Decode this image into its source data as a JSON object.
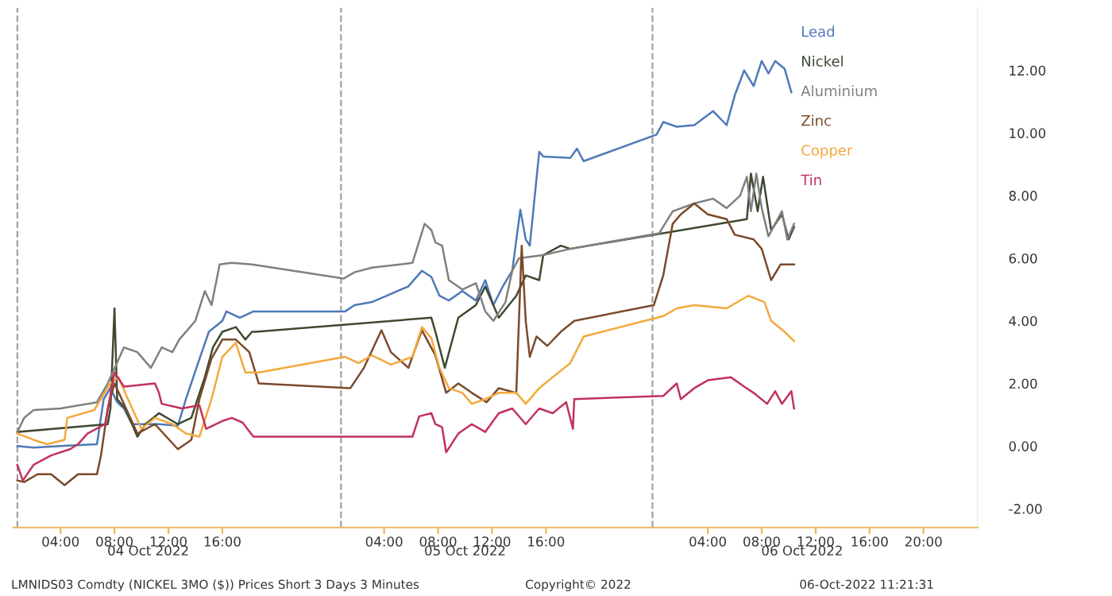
{
  "chart_data": {
    "type": "line",
    "x2ticks": [
      {
        "value": "2022-10-04T10:30",
        "label": "04 Oct 2022"
      },
      {
        "value": "2022-10-05T10:00",
        "label": "05 Oct 2022"
      },
      {
        "value": "2022-10-06T11:00",
        "label": "06 Oct 2022"
      }
    ],
    "xlim": [
      "2022-10-04T00:30",
      "2022-10-07T00:00"
    ],
    "x2lim": [
      "2022-10-04T00:30",
      "2022-10-07T00:00"
    ],
    "xticks": [
      {
        "value": "2022-10-04T04:00",
        "label": "04:00"
      },
      {
        "value": "2022-10-04T08:00",
        "label": "08:00"
      },
      {
        "value": "2022-10-04T12:00",
        "label": "12:00"
      },
      {
        "value": "2022-10-04T16:00",
        "label": "16:00"
      },
      {
        "value": "2022-10-05T04:00",
        "label": "04:00"
      },
      {
        "value": "2022-10-05T08:00",
        "label": "08:00"
      },
      {
        "value": "2022-10-05T12:00",
        "label": "12:00"
      },
      {
        "value": "2022-10-05T16:00",
        "label": "16:00"
      },
      {
        "value": "2022-10-06T04:00",
        "label": "04:00"
      },
      {
        "value": "2022-10-06T08:00",
        "label": "08:00"
      },
      {
        "value": "2022-10-06T12:00",
        "label": "12:00"
      },
      {
        "value": "2022-10-06T16:00",
        "label": "16:00"
      },
      {
        "value": "2022-10-06T20:00",
        "label": "20:00"
      }
    ],
    "ylim": [
      -2.6,
      14
    ],
    "yticks": [
      {
        "value": -2,
        "label": "-2.00"
      },
      {
        "value": 0,
        "label": "0.00"
      },
      {
        "value": 2,
        "label": "2.00"
      },
      {
        "value": 4,
        "label": "4.00"
      },
      {
        "value": 6,
        "label": "6.00"
      },
      {
        "value": 8,
        "label": "8.00"
      },
      {
        "value": 10,
        "label": "10.00"
      },
      {
        "value": 12,
        "label": "12.00"
      }
    ],
    "ref_lines": [
      {
        "axis": "x",
        "value": "2022-10-04T00:48",
        "color": "#a0a0a0",
        "line_style": "dashed"
      },
      {
        "axis": "x",
        "value": "2022-10-05T00:48",
        "color": "#a0a0a0",
        "line_style": "dashed"
      },
      {
        "axis": "x",
        "value": "2022-10-05T23:54",
        "color": "#a0a0a0",
        "line_style": "dashed"
      }
    ],
    "legend": "top right",
    "annotations": [
      "LMNIDS03 Comdty (NICKEL 3MO ($)) Prices Short 3 Days 3 Minutes",
      "Copyright© 2022",
      "06-Oct-2022 11:21:31"
    ],
    "series": [
      {
        "name": "Lead",
        "color": "#4f79b8",
        "x": [
          "2022-10-04T00:48",
          "2022-10-04T02:00",
          "2022-10-04T04:00",
          "2022-10-04T06:42",
          "2022-10-04T07:12",
          "2022-10-04T07:42",
          "2022-10-04T08:12",
          "2022-10-04T08:42",
          "2022-10-04T09:18",
          "2022-10-04T10:00",
          "2022-10-04T11:18",
          "2022-10-04T12:42",
          "2022-10-04T13:18",
          "2022-10-04T14:12",
          "2022-10-04T15:00",
          "2022-10-04T16:00",
          "2022-10-04T16:18",
          "2022-10-04T17:18",
          "2022-10-04T18:18",
          "2022-10-05T01:06",
          "2022-10-05T01:48",
          "2022-10-05T03:06",
          "2022-10-05T05:48",
          "2022-10-05T06:48",
          "2022-10-05T07:30",
          "2022-10-05T08:06",
          "2022-10-05T08:48",
          "2022-10-05T09:48",
          "2022-10-05T10:48",
          "2022-10-05T11:30",
          "2022-10-05T12:06",
          "2022-10-05T12:48",
          "2022-10-05T13:30",
          "2022-10-05T14:06",
          "2022-10-05T14:30",
          "2022-10-05T14:48",
          "2022-10-05T15:30",
          "2022-10-05T15:48",
          "2022-10-05T17:48",
          "2022-10-05T18:18",
          "2022-10-05T18:48",
          "2022-10-06T00:12",
          "2022-10-06T00:42",
          "2022-10-06T01:42",
          "2022-10-06T03:00",
          "2022-10-06T04:24",
          "2022-10-06T05:24",
          "2022-10-06T06:00",
          "2022-10-06T06:42",
          "2022-10-06T07:24",
          "2022-10-06T08:00",
          "2022-10-06T08:30",
          "2022-10-06T09:00",
          "2022-10-06T09:42",
          "2022-10-06T10:12"
        ],
        "values": [
          0.0,
          -0.05,
          0.0,
          0.06,
          1.5,
          1.85,
          1.4,
          1.2,
          0.7,
          0.7,
          0.7,
          0.65,
          1.5,
          2.65,
          3.65,
          4.0,
          4.3,
          4.1,
          4.3,
          4.3,
          4.5,
          4.6,
          5.1,
          5.6,
          5.4,
          4.8,
          4.65,
          4.95,
          4.65,
          5.3,
          4.5,
          5.1,
          5.6,
          7.55,
          6.6,
          6.4,
          9.4,
          9.25,
          9.2,
          9.5,
          9.1,
          9.95,
          10.35,
          10.2,
          10.25,
          10.7,
          10.25,
          11.2,
          12.0,
          11.5,
          12.3,
          11.9,
          12.3,
          12.05,
          11.3
        ]
      },
      {
        "name": "Nickel",
        "color": "#3e4a30",
        "x": [
          "2022-10-04T00:48",
          "2022-10-04T07:30",
          "2022-10-04T07:42",
          "2022-10-04T08:00",
          "2022-10-04T08:12",
          "2022-10-04T08:48",
          "2022-10-04T09:42",
          "2022-10-04T10:18",
          "2022-10-04T11:18",
          "2022-10-04T12:42",
          "2022-10-04T13:42",
          "2022-10-04T14:42",
          "2022-10-04T15:18",
          "2022-10-04T16:00",
          "2022-10-04T17:00",
          "2022-10-04T17:42",
          "2022-10-04T18:12",
          "2022-10-04T18:30",
          "2022-10-05T07:30",
          "2022-10-05T07:48",
          "2022-10-05T08:30",
          "2022-10-05T09:30",
          "2022-10-05T10:48",
          "2022-10-05T11:30",
          "2022-10-05T12:30",
          "2022-10-05T13:48",
          "2022-10-05T14:30",
          "2022-10-05T15:30",
          "2022-10-05T15:48",
          "2022-10-05T17:06",
          "2022-10-05T17:48",
          "2022-10-06T06:54",
          "2022-10-06T07:12",
          "2022-10-06T07:42",
          "2022-10-06T08:06",
          "2022-10-06T08:42",
          "2022-10-06T09:30",
          "2022-10-06T10:00",
          "2022-10-06T10:24"
        ],
        "values": [
          0.45,
          0.7,
          1.2,
          4.4,
          1.5,
          1.2,
          0.3,
          0.7,
          1.05,
          0.7,
          0.9,
          2.2,
          3.15,
          3.65,
          3.8,
          3.4,
          3.65,
          3.65,
          4.1,
          3.65,
          2.5,
          4.1,
          4.5,
          5.1,
          4.1,
          4.8,
          5.45,
          5.3,
          6.1,
          6.4,
          6.3,
          7.25,
          8.7,
          7.5,
          8.6,
          6.9,
          7.4,
          6.6,
          7.0
        ]
      },
      {
        "name": "Aluminium",
        "color": "#808080",
        "x": [
          "2022-10-04T00:48",
          "2022-10-04T01:18",
          "2022-10-04T02:00",
          "2022-10-04T04:00",
          "2022-10-04T06:42",
          "2022-10-04T07:30",
          "2022-10-04T08:42",
          "2022-10-04T09:42",
          "2022-10-04T10:42",
          "2022-10-04T11:30",
          "2022-10-04T12:18",
          "2022-10-04T12:48",
          "2022-10-04T14:00",
          "2022-10-04T14:42",
          "2022-10-04T15:12",
          "2022-10-04T15:48",
          "2022-10-04T16:42",
          "2022-10-04T18:12",
          "2022-10-05T01:00",
          "2022-10-05T01:48",
          "2022-10-05T03:06",
          "2022-10-05T06:06",
          "2022-10-05T07:00",
          "2022-10-05T07:30",
          "2022-10-05T07:48",
          "2022-10-05T08:18",
          "2022-10-05T08:48",
          "2022-10-05T09:48",
          "2022-10-05T10:48",
          "2022-10-05T11:30",
          "2022-10-05T12:06",
          "2022-10-05T13:00",
          "2022-10-05T13:30",
          "2022-10-05T14:00",
          "2022-10-05T15:48",
          "2022-10-05T17:48",
          "2022-10-06T00:24",
          "2022-10-06T01:24",
          "2022-10-06T03:00",
          "2022-10-06T04:24",
          "2022-10-06T05:24",
          "2022-10-06T06:24",
          "2022-10-06T06:54",
          "2022-10-06T07:12",
          "2022-10-06T07:36",
          "2022-10-06T08:00",
          "2022-10-06T08:30",
          "2022-10-06T09:30",
          "2022-10-06T09:54",
          "2022-10-06T10:24"
        ],
        "values": [
          0.45,
          0.9,
          1.15,
          1.2,
          1.4,
          2.0,
          3.15,
          3.0,
          2.5,
          3.15,
          3.0,
          3.4,
          4.0,
          4.95,
          4.5,
          5.8,
          5.85,
          5.8,
          5.35,
          5.55,
          5.7,
          5.85,
          7.1,
          6.9,
          6.5,
          6.4,
          5.3,
          5.0,
          5.2,
          4.3,
          4.0,
          4.6,
          5.6,
          6.0,
          6.1,
          6.3,
          6.8,
          7.5,
          7.75,
          7.9,
          7.6,
          8.0,
          8.6,
          7.5,
          8.7,
          7.6,
          6.7,
          7.5,
          6.6,
          7.1
        ]
      },
      {
        "name": "Zinc",
        "color": "#7a4a2a",
        "x": [
          "2022-10-04T00:48",
          "2022-10-04T01:18",
          "2022-10-04T02:18",
          "2022-10-04T03:18",
          "2022-10-04T04:18",
          "2022-10-04T05:18",
          "2022-10-04T06:42",
          "2022-10-04T07:00",
          "2022-10-04T07:30",
          "2022-10-04T08:00",
          "2022-10-04T08:42",
          "2022-10-04T09:42",
          "2022-10-04T11:00",
          "2022-10-04T12:42",
          "2022-10-04T13:42",
          "2022-10-04T14:18",
          "2022-10-04T15:12",
          "2022-10-04T16:00",
          "2022-10-04T17:00",
          "2022-10-04T18:00",
          "2022-10-04T18:42",
          "2022-10-05T01:30",
          "2022-10-05T02:30",
          "2022-10-05T03:48",
          "2022-10-05T04:30",
          "2022-10-05T05:48",
          "2022-10-05T06:48",
          "2022-10-05T07:48",
          "2022-10-05T08:36",
          "2022-10-05T09:30",
          "2022-10-05T10:30",
          "2022-10-05T11:36",
          "2022-10-05T12:30",
          "2022-10-05T13:48",
          "2022-10-05T14:12",
          "2022-10-05T14:30",
          "2022-10-05T14:48",
          "2022-10-05T15:18",
          "2022-10-05T16:06",
          "2022-10-05T17:06",
          "2022-10-05T18:06",
          "2022-10-06T00:00",
          "2022-10-06T00:42",
          "2022-10-06T01:24",
          "2022-10-06T02:00",
          "2022-10-06T03:00",
          "2022-10-06T04:00",
          "2022-10-06T05:24",
          "2022-10-06T06:00",
          "2022-10-06T07:24",
          "2022-10-06T08:00",
          "2022-10-06T08:42",
          "2022-10-06T09:24",
          "2022-10-06T10:24"
        ],
        "values": [
          -1.1,
          -1.15,
          -0.9,
          -0.9,
          -1.25,
          -0.9,
          -0.9,
          -0.3,
          1.2,
          2.0,
          1.35,
          0.4,
          0.7,
          -0.1,
          0.2,
          1.5,
          2.8,
          3.4,
          3.4,
          3.0,
          2.0,
          1.85,
          2.5,
          3.7,
          3.0,
          2.5,
          3.7,
          2.9,
          1.7,
          2.0,
          1.7,
          1.4,
          1.85,
          1.7,
          6.4,
          4.0,
          2.85,
          3.5,
          3.2,
          3.65,
          4.0,
          4.5,
          5.45,
          7.1,
          7.4,
          7.75,
          7.4,
          7.25,
          6.75,
          6.6,
          6.3,
          5.3,
          5.8,
          5.8
        ]
      },
      {
        "name": "Copper",
        "color": "#f2a93b",
        "x": [
          "2022-10-04T00:48",
          "2022-10-04T02:00",
          "2022-10-04T03:00",
          "2022-10-04T04:18",
          "2022-10-04T04:30",
          "2022-10-04T06:30",
          "2022-10-04T07:42",
          "2022-10-04T08:18",
          "2022-10-04T09:00",
          "2022-10-04T10:00",
          "2022-10-04T11:00",
          "2022-10-04T12:18",
          "2022-10-04T13:18",
          "2022-10-04T14:18",
          "2022-10-04T15:12",
          "2022-10-04T16:00",
          "2022-10-04T17:00",
          "2022-10-04T17:42",
          "2022-10-04T18:42",
          "2022-10-05T01:06",
          "2022-10-05T02:06",
          "2022-10-05T03:06",
          "2022-10-05T04:30",
          "2022-10-05T06:06",
          "2022-10-05T06:48",
          "2022-10-05T07:30",
          "2022-10-05T08:06",
          "2022-10-05T08:48",
          "2022-10-05T09:48",
          "2022-10-05T10:30",
          "2022-10-05T11:30",
          "2022-10-05T12:30",
          "2022-10-05T13:48",
          "2022-10-05T14:30",
          "2022-10-05T15:30",
          "2022-10-05T16:30",
          "2022-10-05T17:48",
          "2022-10-05T18:48",
          "2022-10-06T00:42",
          "2022-10-06T01:42",
          "2022-10-06T03:00",
          "2022-10-06T05:24",
          "2022-10-06T07:00",
          "2022-10-06T08:12",
          "2022-10-06T08:42",
          "2022-10-06T09:42",
          "2022-10-06T10:24"
        ],
        "values": [
          0.4,
          0.2,
          0.06,
          0.2,
          0.9,
          1.15,
          2.0,
          2.2,
          1.5,
          0.55,
          0.9,
          0.7,
          0.4,
          0.3,
          1.5,
          2.85,
          3.3,
          2.35,
          2.35,
          2.85,
          2.65,
          2.9,
          2.6,
          2.85,
          3.8,
          3.45,
          2.5,
          1.85,
          1.7,
          1.35,
          1.5,
          1.7,
          1.7,
          1.35,
          1.85,
          2.2,
          2.65,
          3.5,
          4.15,
          4.4,
          4.5,
          4.4,
          4.8,
          4.6,
          4.0,
          3.65,
          3.35
        ]
      },
      {
        "name": "Tin",
        "color": "#c2325a",
        "x": [
          "2022-10-04T00:48",
          "2022-10-04T01:12",
          "2022-10-04T02:00",
          "2022-10-04T03:18",
          "2022-10-04T04:42",
          "2022-10-04T05:18",
          "2022-10-04T06:00",
          "2022-10-04T07:18",
          "2022-10-04T08:00",
          "2022-10-04T08:42",
          "2022-10-04T11:00",
          "2022-10-04T11:18",
          "2022-10-04T11:30",
          "2022-10-04T13:00",
          "2022-10-04T14:18",
          "2022-10-04T14:48",
          "2022-10-04T16:00",
          "2022-10-04T16:42",
          "2022-10-04T17:30",
          "2022-10-04T18:18",
          "2022-10-05T01:48",
          "2022-10-05T06:06",
          "2022-10-05T06:36",
          "2022-10-05T07:30",
          "2022-10-05T07:48",
          "2022-10-05T08:18",
          "2022-10-05T08:36",
          "2022-10-05T09:30",
          "2022-10-05T10:30",
          "2022-10-05T11:30",
          "2022-10-05T12:30",
          "2022-10-05T13:30",
          "2022-10-05T14:30",
          "2022-10-05T15:30",
          "2022-10-05T16:30",
          "2022-10-05T17:30",
          "2022-10-05T18:00",
          "2022-10-05T18:06",
          "2022-10-06T00:42",
          "2022-10-06T01:42",
          "2022-10-06T02:00",
          "2022-10-06T03:00",
          "2022-10-06T04:00",
          "2022-10-06T05:42",
          "2022-10-06T06:42",
          "2022-10-06T07:24",
          "2022-10-06T08:24",
          "2022-10-06T09:00",
          "2022-10-06T09:30",
          "2022-10-06T10:12",
          "2022-10-06T10:24"
        ],
        "values": [
          -0.6,
          -1.1,
          -0.6,
          -0.3,
          -0.1,
          0.06,
          0.4,
          0.7,
          2.35,
          1.9,
          2.0,
          1.7,
          1.35,
          1.2,
          1.3,
          0.55,
          0.8,
          0.9,
          0.75,
          0.3,
          0.3,
          0.3,
          0.95,
          1.05,
          0.7,
          0.6,
          -0.2,
          0.4,
          0.7,
          0.45,
          1.05,
          1.2,
          0.7,
          1.2,
          1.05,
          1.4,
          0.55,
          1.5,
          1.6,
          2.0,
          1.5,
          1.85,
          2.1,
          2.2,
          1.9,
          1.7,
          1.35,
          1.75,
          1.35,
          1.75,
          1.2
        ]
      }
    ]
  }
}
